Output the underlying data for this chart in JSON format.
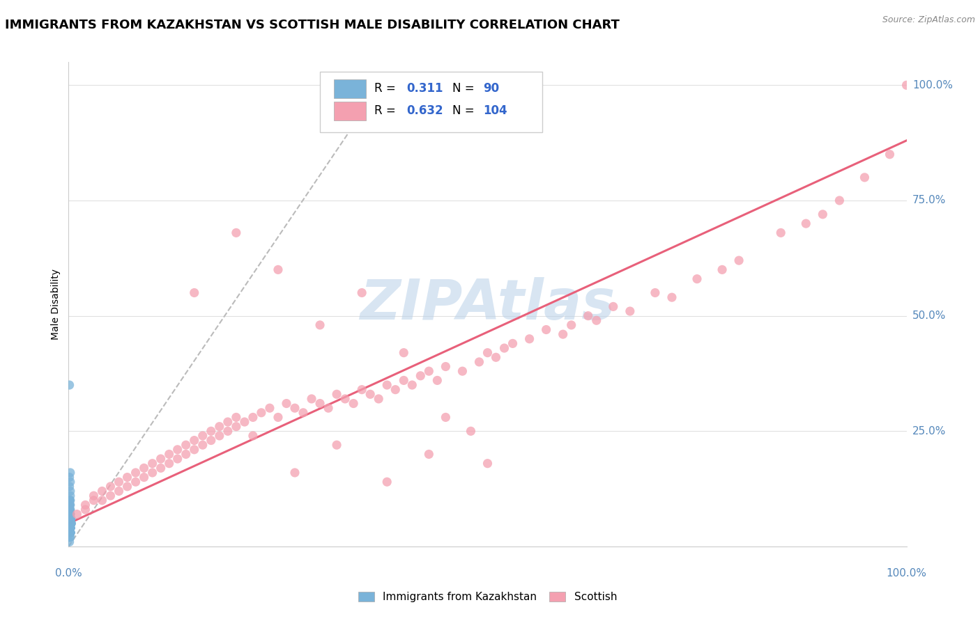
{
  "title": "IMMIGRANTS FROM KAZAKHSTAN VS SCOTTISH MALE DISABILITY CORRELATION CHART",
  "source_text": "Source: ZipAtlas.com",
  "ylabel": "Male Disability",
  "x_min": 0.0,
  "x_max": 1.0,
  "y_min": 0.0,
  "y_max": 1.05,
  "y_ticks": [
    0.0,
    0.25,
    0.5,
    0.75,
    1.0
  ],
  "y_tick_labels": [
    "",
    "25.0%",
    "50.0%",
    "75.0%",
    "100.0%"
  ],
  "color_blue": "#7ab3d9",
  "color_pink": "#f4a0b0",
  "color_trend_gray": "#bbbbbb",
  "color_trend_pink": "#e8607a",
  "color_axis_label": "#5588bb",
  "watermark_color": "#b8d0e8",
  "title_fontsize": 13,
  "label_fontsize": 10,
  "tick_fontsize": 11,
  "legend_fontsize": 12,
  "blue_scatter_x": [
    0.001,
    0.002,
    0.001,
    0.003,
    0.002,
    0.001,
    0.002,
    0.001,
    0.003,
    0.001,
    0.002,
    0.001,
    0.002,
    0.001,
    0.002,
    0.001,
    0.002,
    0.001,
    0.002,
    0.001,
    0.003,
    0.001,
    0.002,
    0.001,
    0.002,
    0.001,
    0.002,
    0.001,
    0.002,
    0.001,
    0.002,
    0.001,
    0.002,
    0.001,
    0.003,
    0.001,
    0.002,
    0.001,
    0.002,
    0.001,
    0.002,
    0.001,
    0.002,
    0.001,
    0.002,
    0.001,
    0.002,
    0.001,
    0.002,
    0.001,
    0.002,
    0.001,
    0.002,
    0.001,
    0.002,
    0.001,
    0.002,
    0.001,
    0.002,
    0.001,
    0.002,
    0.001,
    0.003,
    0.001,
    0.002,
    0.001,
    0.002,
    0.001,
    0.002,
    0.001,
    0.002,
    0.001,
    0.002,
    0.001,
    0.002,
    0.001,
    0.002,
    0.001,
    0.002,
    0.001,
    0.002,
    0.001,
    0.002,
    0.001,
    0.002,
    0.001,
    0.002,
    0.001,
    0.002,
    0.001
  ],
  "blue_scatter_y": [
    0.02,
    0.03,
    0.04,
    0.05,
    0.03,
    0.06,
    0.04,
    0.07,
    0.05,
    0.08,
    0.03,
    0.09,
    0.04,
    0.1,
    0.05,
    0.06,
    0.07,
    0.08,
    0.04,
    0.09,
    0.05,
    0.1,
    0.06,
    0.07,
    0.08,
    0.03,
    0.09,
    0.04,
    0.1,
    0.05,
    0.11,
    0.06,
    0.07,
    0.08,
    0.05,
    0.09,
    0.04,
    0.1,
    0.06,
    0.07,
    0.03,
    0.08,
    0.05,
    0.09,
    0.04,
    0.1,
    0.06,
    0.07,
    0.03,
    0.08,
    0.05,
    0.09,
    0.04,
    0.1,
    0.06,
    0.07,
    0.03,
    0.08,
    0.05,
    0.09,
    0.04,
    0.1,
    0.06,
    0.07,
    0.03,
    0.08,
    0.05,
    0.09,
    0.04,
    0.1,
    0.06,
    0.07,
    0.03,
    0.08,
    0.05,
    0.09,
    0.04,
    0.1,
    0.06,
    0.07,
    0.03,
    0.08,
    0.12,
    0.13,
    0.14,
    0.15,
    0.16,
    0.35,
    0.02,
    0.01
  ],
  "pink_scatter_x": [
    0.01,
    0.02,
    0.02,
    0.03,
    0.03,
    0.04,
    0.04,
    0.05,
    0.05,
    0.06,
    0.06,
    0.07,
    0.07,
    0.08,
    0.08,
    0.09,
    0.09,
    0.1,
    0.1,
    0.11,
    0.11,
    0.12,
    0.12,
    0.13,
    0.13,
    0.14,
    0.14,
    0.15,
    0.15,
    0.16,
    0.16,
    0.17,
    0.17,
    0.18,
    0.18,
    0.19,
    0.19,
    0.2,
    0.2,
    0.21,
    0.22,
    0.23,
    0.24,
    0.25,
    0.26,
    0.27,
    0.28,
    0.29,
    0.3,
    0.31,
    0.32,
    0.33,
    0.34,
    0.35,
    0.36,
    0.37,
    0.38,
    0.39,
    0.4,
    0.41,
    0.42,
    0.43,
    0.44,
    0.45,
    0.47,
    0.49,
    0.5,
    0.51,
    0.52,
    0.53,
    0.55,
    0.57,
    0.59,
    0.6,
    0.62,
    0.63,
    0.65,
    0.67,
    0.7,
    0.72,
    0.75,
    0.78,
    0.8,
    0.85,
    0.88,
    0.9,
    0.92,
    0.95,
    0.98,
    1.0,
    0.3,
    0.35,
    0.4,
    0.25,
    0.2,
    0.15,
    0.45,
    0.5,
    0.22,
    0.27,
    0.32,
    0.38,
    0.43,
    0.48
  ],
  "pink_scatter_y": [
    0.07,
    0.08,
    0.09,
    0.1,
    0.11,
    0.1,
    0.12,
    0.11,
    0.13,
    0.12,
    0.14,
    0.13,
    0.15,
    0.14,
    0.16,
    0.15,
    0.17,
    0.16,
    0.18,
    0.17,
    0.19,
    0.18,
    0.2,
    0.19,
    0.21,
    0.2,
    0.22,
    0.21,
    0.23,
    0.22,
    0.24,
    0.23,
    0.25,
    0.24,
    0.26,
    0.25,
    0.27,
    0.26,
    0.28,
    0.27,
    0.28,
    0.29,
    0.3,
    0.28,
    0.31,
    0.3,
    0.29,
    0.32,
    0.31,
    0.3,
    0.33,
    0.32,
    0.31,
    0.34,
    0.33,
    0.32,
    0.35,
    0.34,
    0.36,
    0.35,
    0.37,
    0.38,
    0.36,
    0.39,
    0.38,
    0.4,
    0.42,
    0.41,
    0.43,
    0.44,
    0.45,
    0.47,
    0.46,
    0.48,
    0.5,
    0.49,
    0.52,
    0.51,
    0.55,
    0.54,
    0.58,
    0.6,
    0.62,
    0.68,
    0.7,
    0.72,
    0.75,
    0.8,
    0.85,
    1.0,
    0.48,
    0.55,
    0.42,
    0.6,
    0.68,
    0.55,
    0.28,
    0.18,
    0.24,
    0.16,
    0.22,
    0.14,
    0.2,
    0.25
  ],
  "blue_trend_x": [
    0.0,
    0.38
  ],
  "blue_trend_y": [
    0.0,
    1.02
  ],
  "pink_trend_x": [
    0.0,
    1.0
  ],
  "pink_trend_y": [
    0.05,
    0.88
  ]
}
